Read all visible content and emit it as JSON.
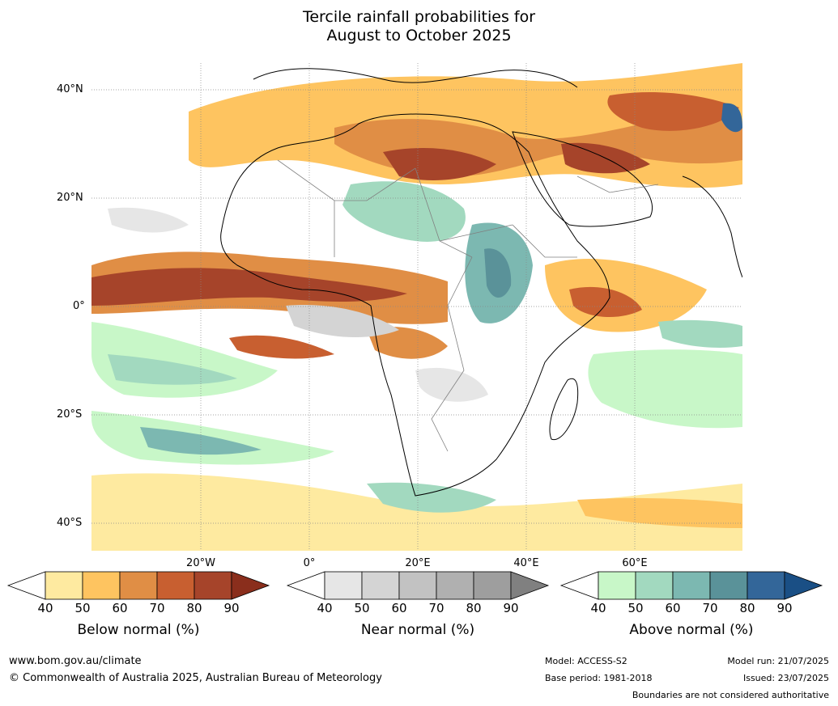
{
  "title_line1": "Tercile rainfall probabilities for",
  "title_line2": "August to October 2025",
  "map": {
    "lat_labels": [
      "40°N",
      "20°N",
      "0°",
      "20°S",
      "40°S"
    ],
    "lon_labels": [
      "20°W",
      "0°",
      "20°E",
      "40°E",
      "60°E"
    ],
    "region": "Africa, Middle East and Western Indian Ocean",
    "colors": {
      "ocean_bg": "#ffffff",
      "coastline": "#000000",
      "borders": "#808080",
      "grid": "#888888"
    }
  },
  "colorbars": [
    {
      "label": "Below normal (%)",
      "ticks": [
        "40",
        "50",
        "60",
        "70",
        "80",
        "90"
      ],
      "colors": [
        "#ffffff",
        "#feeaa0",
        "#fec460",
        "#e08e45",
        "#c85f30",
        "#a6442a",
        "#8a2e1c"
      ]
    },
    {
      "label": "Near normal (%)",
      "ticks": [
        "40",
        "50",
        "60",
        "70",
        "80",
        "90"
      ],
      "colors": [
        "#ffffff",
        "#e6e6e6",
        "#d4d4d4",
        "#c2c2c2",
        "#b0b0b0",
        "#9e9e9e",
        "#808080"
      ]
    },
    {
      "label": "Above normal (%)",
      "ticks": [
        "40",
        "50",
        "60",
        "70",
        "80",
        "90"
      ],
      "colors": [
        "#ffffff",
        "#c8f7c8",
        "#a2d9bf",
        "#7cb8b1",
        "#5a9299",
        "#336699",
        "#1a4f85"
      ]
    }
  ],
  "footer": {
    "website": "www.bom.gov.au/climate",
    "copyright": "© Commonwealth of Australia 2025, Australian Bureau of Meteorology",
    "model": "Model: ACCESS-S2",
    "base_period": "Base period: 1981-2018",
    "model_run": "Model run: 21/07/2025",
    "issued": "Issued: 23/07/2025",
    "disclaimer": "Boundaries are not considered authoritative"
  }
}
